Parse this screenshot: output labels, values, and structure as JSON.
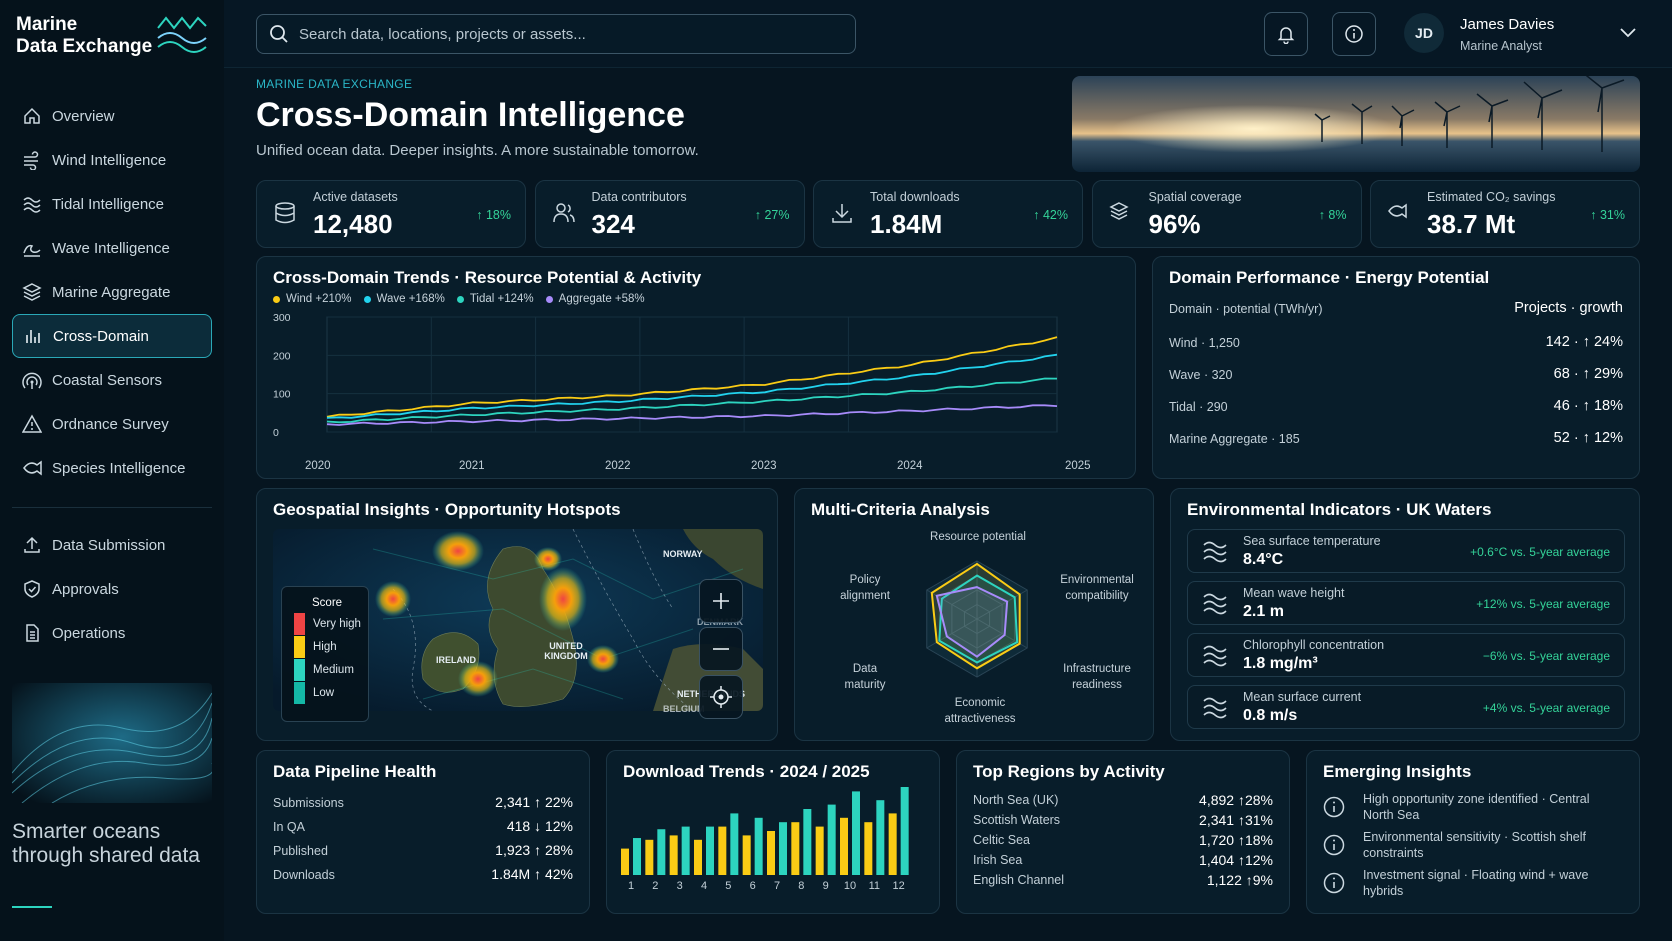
{
  "brand": {
    "name_line1": "Marine",
    "name_line2": "Data Exchange",
    "tagline": "Smarter oceans through shared data"
  },
  "sidebar": {
    "items": [
      {
        "label": "Overview",
        "icon": "home-icon"
      },
      {
        "label": "Wind Intelligence",
        "icon": "wind-icon"
      },
      {
        "label": "Tidal Intelligence",
        "icon": "tide-icon"
      },
      {
        "label": "Wave Intelligence",
        "icon": "wave-icon"
      },
      {
        "label": "Marine Aggregate",
        "icon": "layers-icon"
      },
      {
        "label": "Cross-Domain",
        "icon": "bar-chart-icon",
        "active": true
      },
      {
        "label": "Coastal Sensors",
        "icon": "sensor-icon"
      },
      {
        "label": "Ordnance Survey",
        "icon": "warning-icon"
      },
      {
        "label": "Species Intelligence",
        "icon": "fish-icon"
      }
    ],
    "secondary": [
      {
        "label": "Data Submission",
        "icon": "upload-icon"
      },
      {
        "label": "Approvals",
        "icon": "shield-check-icon"
      },
      {
        "label": "Operations",
        "icon": "document-icon"
      }
    ]
  },
  "search": {
    "placeholder": "Search data, locations, projects or assets..."
  },
  "user": {
    "initials": "JD",
    "name": "James Davies",
    "role": "Marine Analyst"
  },
  "header": {
    "eyebrow": "MARINE DATA EXCHANGE",
    "title": "Cross-Domain Intelligence",
    "subtitle": "Unified ocean data. Deeper insights. A more sustainable tomorrow."
  },
  "kpis": [
    {
      "label": "Active datasets",
      "value": "12,480",
      "delta": "↑ 18%",
      "icon": "database-icon"
    },
    {
      "label": "Data contributors",
      "value": "324",
      "delta": "↑ 27%",
      "icon": "users-icon"
    },
    {
      "label": "Total downloads",
      "value": "1.84M",
      "delta": "↑ 42%",
      "icon": "download-icon"
    },
    {
      "label": "Spatial coverage",
      "value": "96%",
      "delta": "↑ 8%",
      "icon": "layers-icon"
    },
    {
      "label": "Estimated CO₂ savings",
      "value": "38.7 Mt",
      "delta": "↑ 31%",
      "icon": "fish-icon"
    }
  ],
  "trends": {
    "title": "Cross-Domain Trends · Resource Potential & Activity"
  },
  "performance": {
    "title": "Domain Performance · Energy Potential",
    "head_left": "Domain · potential (TWh/yr)",
    "head_right": "Projects · growth",
    "rows": [
      {
        "label": "Wind · 1,250",
        "value": "142  ·  ↑ 24%"
      },
      {
        "label": "Wave · 320",
        "value": "68  ·  ↑ 29%"
      },
      {
        "label": "Tidal · 290",
        "value": "46  ·  ↑ 18%"
      },
      {
        "label": "Marine Aggregate · 185",
        "value": "52  ·  ↑ 12%"
      }
    ]
  },
  "geo": {
    "title": "Geospatial Insights · Opportunity Hotspots",
    "legend_title": "Score",
    "legend": [
      "Very high",
      "High",
      "Medium",
      "Low"
    ],
    "legend_colors": [
      "#ef4444",
      "#facc15",
      "#2dd4bf",
      "#14b8a6"
    ],
    "labels": {
      "norway": "NORWAY",
      "ireland": "IRELAND",
      "uk": "UNITED KINGDOM",
      "denmark": "DENMARK",
      "netherlands": "NETHERLANDS",
      "belgium": "BELGIUM"
    }
  },
  "mca": {
    "title": "Multi-Criteria Analysis",
    "axes": [
      "Resource potential",
      "Environmental compatibility",
      "Infrastructure readiness",
      "Economic attractiveness",
      "Data maturity",
      "Policy alignment"
    ]
  },
  "env": {
    "title": "Environmental Indicators · UK Waters",
    "rows": [
      {
        "name": "Sea surface temperature",
        "value": "8.4°C",
        "delta": "+0.6°C vs. 5-year average"
      },
      {
        "name": "Mean wave height",
        "value": "2.1 m",
        "delta": "+12% vs. 5-year average"
      },
      {
        "name": "Chlorophyll concentration",
        "value": "1.8 mg/m³",
        "delta": "−6% vs. 5-year average"
      },
      {
        "name": "Mean surface current",
        "value": "0.8 m/s",
        "delta": "+4% vs. 5-year average"
      }
    ]
  },
  "pipeline": {
    "title": "Data Pipeline Health",
    "rows": [
      {
        "label": "Submissions",
        "value": "2,341  ↑ 22%"
      },
      {
        "label": "In QA",
        "value": "418  ↓ 12%"
      },
      {
        "label": "Published",
        "value": "1,923  ↑ 28%"
      },
      {
        "label": "Downloads",
        "value": "1.84M  ↑ 42%"
      }
    ]
  },
  "downloads": {
    "title": "Download Trends · 2024 / 2025"
  },
  "regions": {
    "title": "Top Regions by Activity",
    "rows": [
      {
        "label": "North Sea (UK)",
        "value": "4,892 ↑28%"
      },
      {
        "label": "Scottish Waters",
        "value": "2,341 ↑31%"
      },
      {
        "label": "Celtic Sea",
        "value": "1,720 ↑18%"
      },
      {
        "label": "Irish Sea",
        "value": "1,404 ↑12%"
      },
      {
        "label": "English Channel",
        "value": "1,122 ↑9%"
      }
    ]
  },
  "insights": {
    "title": "Emerging Insights",
    "rows": [
      {
        "text": "High opportunity zone identified · Central North Sea"
      },
      {
        "text": "Environmental sensitivity · Scottish shelf constraints"
      },
      {
        "text": "Investment signal · Floating wind + wave hybrids"
      }
    ]
  },
  "chart_data": [
    {
      "type": "line",
      "title": "Cross-Domain Trends · Resource Potential & Activity",
      "x": [
        2020,
        2021,
        2022,
        2023,
        2024,
        2025
      ],
      "ylim": [
        0,
        300
      ],
      "yticks": [
        0,
        100,
        200,
        300
      ],
      "series": [
        {
          "name": "Wind +210%",
          "color": "#facc15",
          "values": [
            40,
            75,
            95,
            125,
            175,
            245
          ]
        },
        {
          "name": "Wave +168%",
          "color": "#22d3ee",
          "values": [
            35,
            62,
            80,
            105,
            145,
            200
          ]
        },
        {
          "name": "Tidal +124%",
          "color": "#2dd4bf",
          "values": [
            25,
            45,
            60,
            80,
            105,
            140
          ]
        },
        {
          "name": "Aggregate +58%",
          "color": "#a78bfa",
          "values": [
            20,
            28,
            35,
            42,
            55,
            70
          ]
        }
      ]
    },
    {
      "type": "bar",
      "title": "Download Trends · 2024 / 2025",
      "categories": [
        "1",
        "2",
        "3",
        "4",
        "5",
        "6",
        "7",
        "8",
        "9",
        "10",
        "11",
        "12"
      ],
      "series": [
        {
          "name": "2024",
          "color": "#facc15",
          "values": [
            30,
            40,
            45,
            40,
            55,
            45,
            50,
            60,
            55,
            65,
            60,
            70
          ]
        },
        {
          "name": "2025",
          "color": "#2dd4bf",
          "values": [
            42,
            52,
            55,
            55,
            70,
            65,
            60,
            75,
            80,
            95,
            85,
            100
          ]
        }
      ]
    }
  ],
  "radar": {
    "series": [
      {
        "color": "#facc15",
        "values": [
          0.95,
          0.85,
          0.85,
          0.85,
          0.8,
          0.9
        ]
      },
      {
        "color": "#2dd4bf",
        "values": [
          0.75,
          0.75,
          0.8,
          0.75,
          0.75,
          0.7
        ]
      },
      {
        "color": "#a78bfa",
        "values": [
          0.55,
          0.6,
          0.55,
          0.65,
          0.6,
          0.8
        ]
      }
    ]
  }
}
